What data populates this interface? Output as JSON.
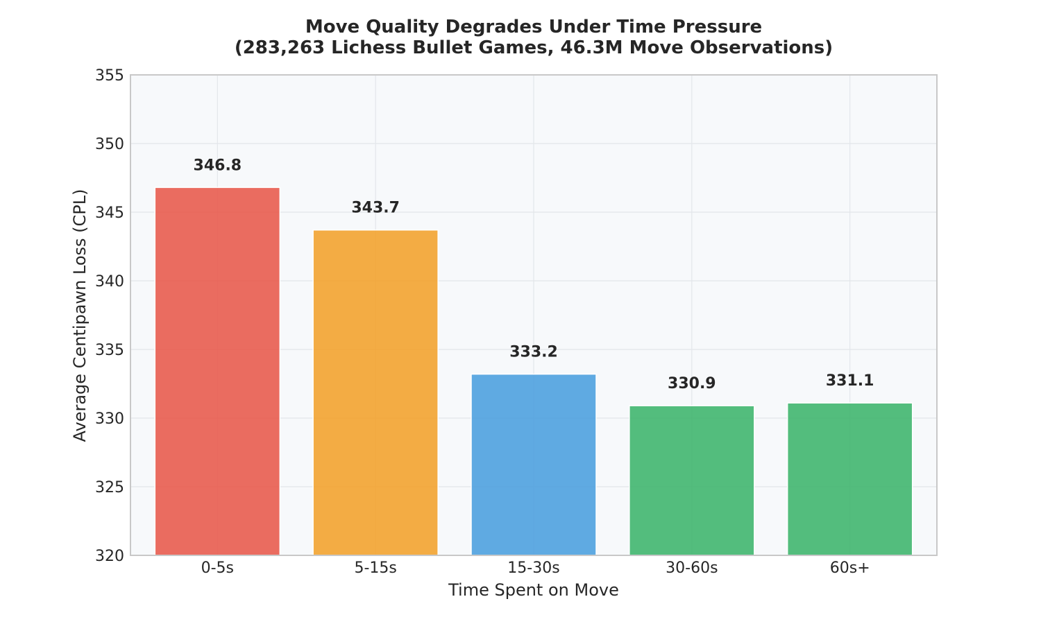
{
  "chart_data": {
    "type": "bar",
    "title": "Move Quality Degrades Under Time Pressure",
    "subtitle": "(283,263 Lichess Bullet Games, 46.3M Move Observations)",
    "xlabel": "Time Spent on Move",
    "ylabel": "Average Centipawn Loss (CPL)",
    "categories": [
      "0-5s",
      "5-15s",
      "15-30s",
      "30-60s",
      "60s+"
    ],
    "values": [
      346.8,
      343.7,
      333.2,
      330.9,
      331.1
    ],
    "value_labels": [
      "346.8",
      "343.7",
      "333.2",
      "330.9",
      "331.1"
    ],
    "colors": [
      "#e8584a",
      "#f2a02a",
      "#4a9ede",
      "#3cb46b",
      "#3cb46b"
    ],
    "ylim": [
      320,
      355
    ],
    "yticks": [
      320,
      325,
      330,
      335,
      340,
      345,
      350,
      355
    ],
    "grid": true,
    "legend": "none",
    "plot_background": "#f7f9fb"
  }
}
